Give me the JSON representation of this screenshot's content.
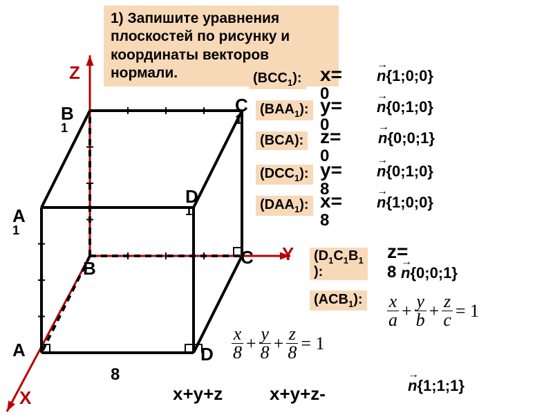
{
  "task_text": "1) Запишите уравнения плоскостей по рисунку и координаты векторов нормали.",
  "axes": {
    "X": "X",
    "Y": "Y",
    "Z": "Z"
  },
  "vertices": {
    "A": {
      "label": "A",
      "sub": ""
    },
    "B": {
      "label": "B",
      "sub": ""
    },
    "C": {
      "label": "C",
      "sub": ""
    },
    "D": {
      "label": "D",
      "sub": ""
    },
    "A1": {
      "label": "A",
      "sub": "1"
    },
    "B1": {
      "label": "B",
      "sub": "1"
    },
    "C1": {
      "label": "C",
      "sub": "1"
    },
    "D1": {
      "label": "D",
      "sub": "1"
    }
  },
  "dim_label": "8",
  "rows": {
    "BCC1": {
      "plane": "(BCC₁):",
      "eq": "x=",
      "val": "0",
      "vec": "{1;0;0}"
    },
    "BAA1": {
      "plane": "(BAA₁):",
      "eq": "y=",
      "val": "0",
      "vec": "{0;1;0}"
    },
    "BCA": {
      "plane": "(BCA):",
      "eq": "z=",
      "val": "0",
      "vec": "{0;0;1}"
    },
    "DCC1": {
      "plane": "(DCC₁):",
      "eq": "y=",
      "val": "8",
      "vec": "{0;1;0}"
    },
    "DAA1": {
      "plane": "(DAA₁):",
      "eq": "x=",
      "val": "8",
      "vec": "{1;0;0}"
    },
    "D1C1B1": {
      "plane": "(D₁C₁B₁):",
      "eq": "z=",
      "val": "8",
      "vec": "{0;0;1}"
    },
    "ACB1": {
      "plane": "(ACB₁):"
    }
  },
  "cube_eq_line1": "x+y+z",
  "cube_eq_line2": "x+y+z-",
  "vec_111": "{1;1;1}",
  "colors": {
    "banner_bg": "#f7d9b8",
    "axis": "#ba0000",
    "edge": "#000000"
  },
  "geom": {
    "origin_B": [
      130,
      370
    ],
    "C": [
      350,
      370
    ],
    "A": [
      60,
      510
    ],
    "D": [
      280,
      510
    ],
    "B1": [
      130,
      160
    ],
    "C1": [
      350,
      160
    ],
    "A1": [
      60,
      300
    ],
    "D1": [
      280,
      300
    ],
    "axis_Y_end": [
      420,
      370
    ],
    "axis_Z_end": [
      130,
      80
    ],
    "axis_X_end": [
      10,
      595
    ],
    "tick": 8,
    "edge_width": 4,
    "dash": "9,7"
  }
}
